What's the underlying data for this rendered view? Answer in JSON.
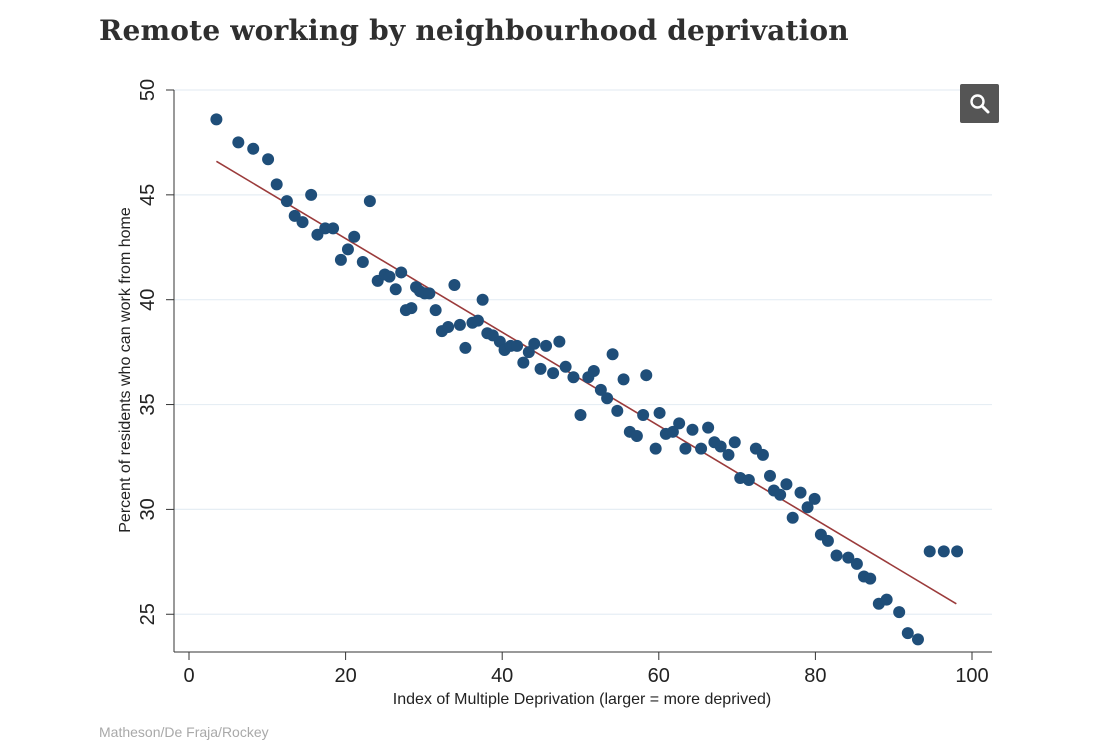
{
  "page": {
    "title": "Remote working by neighbourhood deprivation",
    "credit": "Matheson/De Fraja/Rockey",
    "zoom_icon": "magnifier-icon"
  },
  "colors": {
    "points": "#1f4e79",
    "fit_line": "#9b3b3b",
    "grid": "#e6eef4",
    "zoom_button": "#555555"
  },
  "chart_data": {
    "type": "scatter",
    "xlabel": "Index of Multiple Deprivation (larger = more deprived)",
    "ylabel": "Percent of residents who can work from home",
    "xlim": [
      0,
      100
    ],
    "ylim": [
      23.2,
      50
    ],
    "xticks": [
      0,
      20,
      40,
      60,
      80,
      100
    ],
    "yticks": [
      25,
      30,
      35,
      40,
      45,
      50
    ],
    "grid": "horizontal",
    "fit_line": {
      "x": [
        3.5,
        98
      ],
      "y": [
        46.6,
        25.5
      ]
    },
    "points": {
      "x": [
        3.5,
        6.3,
        8.2,
        10.1,
        11.2,
        12.5,
        13.5,
        14.5,
        15.6,
        16.4,
        17.4,
        18.4,
        19.4,
        20.3,
        21.1,
        22.2,
        23.1,
        24.1,
        25.0,
        25.6,
        26.4,
        27.1,
        27.7,
        28.4,
        29.0,
        29.5,
        30.1,
        30.7,
        31.5,
        32.3,
        33.1,
        33.9,
        34.6,
        35.3,
        36.2,
        36.9,
        37.5,
        38.1,
        38.8,
        39.7,
        40.3,
        41.1,
        41.9,
        42.7,
        43.4,
        44.1,
        44.9,
        45.6,
        46.5,
        47.3,
        48.1,
        49.1,
        50.0,
        51.0,
        51.7,
        52.6,
        53.4,
        54.1,
        54.7,
        55.5,
        56.3,
        57.2,
        58.0,
        58.4,
        59.6,
        60.1,
        60.9,
        61.8,
        62.6,
        63.4,
        64.3,
        65.4,
        66.3,
        67.1,
        67.9,
        68.9,
        69.7,
        70.4,
        71.5,
        72.4,
        73.3,
        74.2,
        74.7,
        75.5,
        76.3,
        77.1,
        78.1,
        79.0,
        79.9,
        80.7,
        81.6,
        82.7,
        84.2,
        85.3,
        86.2,
        87.0,
        88.1,
        89.1,
        90.7,
        91.8,
        93.1,
        94.6,
        96.4,
        98.1
      ],
      "y": [
        48.6,
        47.5,
        47.2,
        46.7,
        45.5,
        44.7,
        44.0,
        43.7,
        45.0,
        43.1,
        43.4,
        43.4,
        41.9,
        42.4,
        43.0,
        41.8,
        44.7,
        40.9,
        41.2,
        41.1,
        40.5,
        41.3,
        39.5,
        39.6,
        40.6,
        40.4,
        40.3,
        40.3,
        39.5,
        38.5,
        38.7,
        40.7,
        38.8,
        37.7,
        38.9,
        39.0,
        40.0,
        38.4,
        38.3,
        38.0,
        37.6,
        37.8,
        37.8,
        37.0,
        37.5,
        37.9,
        36.7,
        37.8,
        36.5,
        38.0,
        36.8,
        36.3,
        34.5,
        36.3,
        36.6,
        35.7,
        35.3,
        37.4,
        34.7,
        36.2,
        33.7,
        33.5,
        34.5,
        36.4,
        32.9,
        34.6,
        33.6,
        33.7,
        34.1,
        32.9,
        33.8,
        32.9,
        33.9,
        33.2,
        33.0,
        32.6,
        33.2,
        31.5,
        31.4,
        32.9,
        32.6,
        31.6,
        30.9,
        30.7,
        31.2,
        29.6,
        30.8,
        30.1,
        30.5,
        28.8,
        28.5,
        27.8,
        27.7,
        27.4,
        26.8,
        26.7,
        25.5,
        25.7,
        25.1,
        24.1,
        23.8,
        28.0,
        28.0,
        28.0
      ]
    }
  }
}
